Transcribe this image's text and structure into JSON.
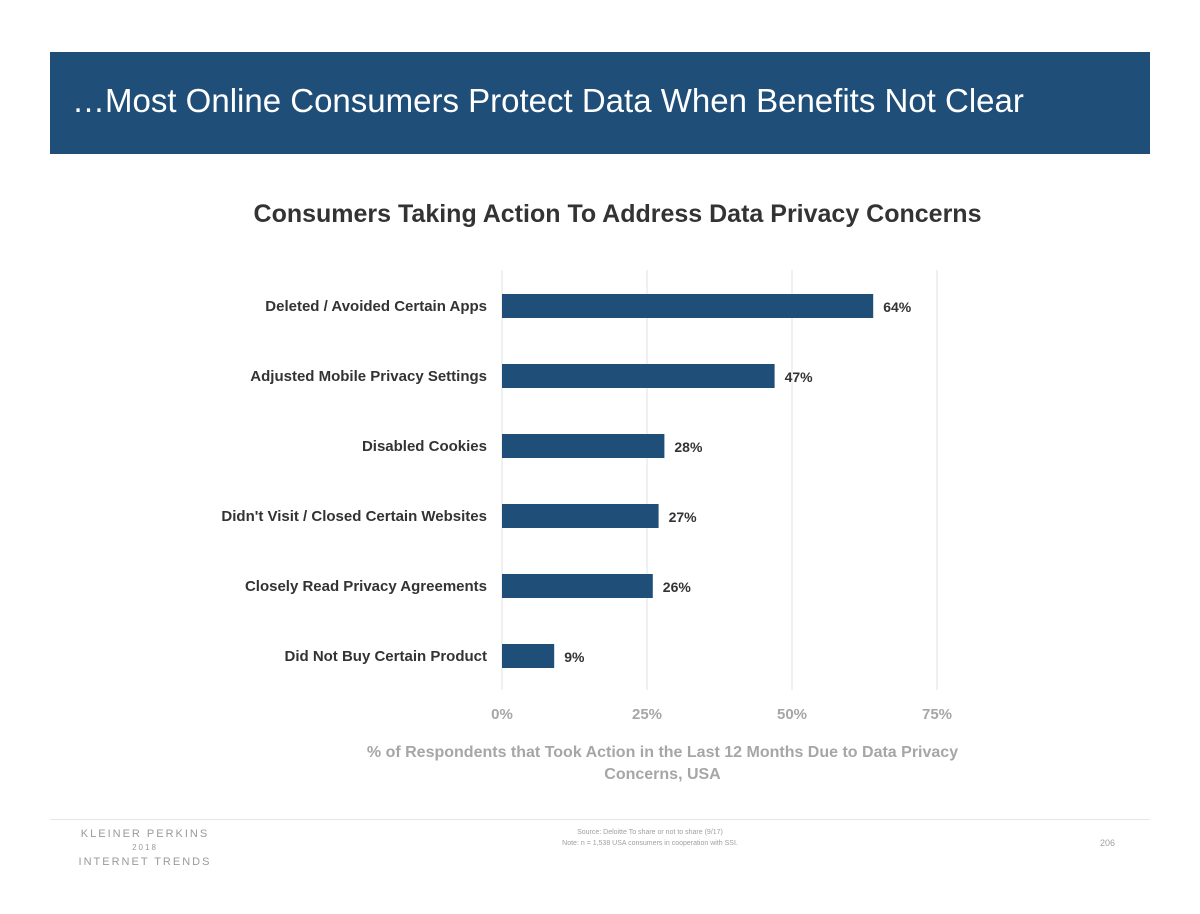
{
  "header": {
    "title": "…Most Online Consumers Protect Data When Benefits Not Clear"
  },
  "chart_data": {
    "type": "bar",
    "orientation": "horizontal",
    "title": "Consumers Taking Action To Address Data Privacy Concerns",
    "categories": [
      "Deleted / Avoided Certain Apps",
      "Adjusted Mobile Privacy Settings",
      "Disabled Cookies",
      "Didn't Visit / Closed Certain Websites",
      "Closely Read Privacy Agreements",
      "Did Not Buy Certain Product"
    ],
    "values": [
      64,
      47,
      28,
      27,
      26,
      9
    ],
    "data_labels": [
      "64%",
      "47%",
      "28%",
      "27%",
      "26%",
      "9%"
    ],
    "xlim": [
      0,
      75
    ],
    "x_ticks": [
      0,
      25,
      50,
      75
    ],
    "x_tick_labels": [
      "0%",
      "25%",
      "50%",
      "75%"
    ],
    "xlabel": "% of Respondents that Took Action in the Last 12 Months Due to Data Privacy Concerns, USA",
    "grid": true,
    "bar_color": "#1f4e79"
  },
  "footer": {
    "logo": {
      "line1": "KLEINER PERKINS",
      "line2": "2018",
      "line3": "INTERNET TRENDS"
    },
    "source_line": "Source: Deloitte To share or not to share (9/17)",
    "note_line": "Note: n = 1,538 USA consumers in cooperation with SSI.",
    "page_number": "206"
  },
  "colors": {
    "header_bg": "#1f4e79",
    "title_text": "#333333",
    "muted_text": "#a6a6a6",
    "gridline": "#e2e2e2"
  }
}
